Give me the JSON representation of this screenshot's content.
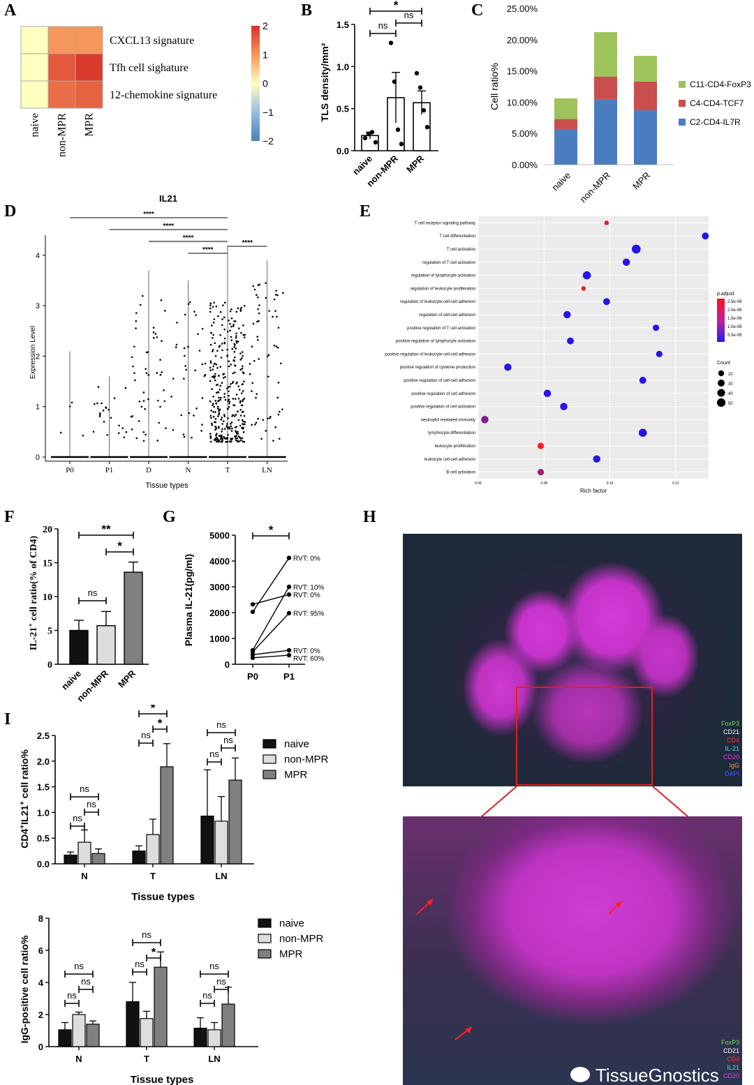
{
  "panels": [
    "A",
    "B",
    "C",
    "D",
    "E",
    "F",
    "G",
    "H",
    "I"
  ],
  "colors": {
    "green": "#9dc35a",
    "red": "#c84f4d",
    "blue": "#4a7dc0",
    "black": "#111111",
    "light": "#dddddd",
    "gray": "#808080"
  },
  "chart_data": [
    {
      "id": "A",
      "type": "heatmap",
      "rows": [
        "CXCL13 signature",
        "Tfh cell sighature",
        "12-chemokine signature"
      ],
      "columns": [
        "naive",
        "non-MPR",
        "MPR"
      ],
      "values": [
        [
          0,
          1.0,
          1.0
        ],
        [
          0,
          1.6,
          1.9
        ],
        [
          0,
          1.4,
          1.5
        ]
      ],
      "colorbar_ticks": [
        "2",
        "1",
        "0",
        "−1",
        "−2"
      ],
      "clim": [
        -2,
        2
      ]
    },
    {
      "id": "B",
      "type": "bar",
      "ylabel": "TLS density/mm²",
      "categories": [
        "naive",
        "non-MPR",
        "MPR"
      ],
      "values": [
        0.18,
        0.63,
        0.57
      ],
      "errors": [
        0.04,
        0.3,
        0.14
      ],
      "points": [
        [
          0.15,
          0.2,
          0.22,
          0.1
        ],
        [
          1.28,
          0.82,
          0.25,
          0.08
        ],
        [
          0.92,
          0.75,
          0.48,
          0.28
        ]
      ],
      "yticks": [
        "0.0",
        "0.5",
        "1.0",
        "1.5"
      ],
      "ylim": [
        0,
        1.5
      ],
      "significance": [
        {
          "a": 1,
          "b": 2,
          "label": "ns"
        },
        {
          "a": 2,
          "b": 3,
          "label": "ns"
        },
        {
          "a": 1,
          "b": 3,
          "label": "*"
        }
      ]
    },
    {
      "id": "C",
      "type": "bar",
      "stacked": true,
      "ylabel": "Cell ratio%",
      "categories": [
        "naive",
        "non-MPR",
        "MPR"
      ],
      "series": [
        {
          "name": "C2-CD4-IL7R",
          "color": "#4a7dc0",
          "values": [
            5.7,
            10.4,
            8.7
          ]
        },
        {
          "name": "C4-CD4-TCF7",
          "color": "#c84f4d",
          "values": [
            1.6,
            3.7,
            4.6
          ]
        },
        {
          "name": "C11-CD4-FoxP3",
          "color": "#9dc35a",
          "values": [
            3.3,
            7.1,
            4.1
          ]
        }
      ],
      "yticks": [
        "0.00%",
        "5.00%",
        "10.00%",
        "15.00%",
        "20.00%",
        "25.00%"
      ],
      "ylim": [
        0,
        25
      ]
    },
    {
      "id": "D",
      "type": "scatter",
      "title": "IL21",
      "xlabel": "Tissue types",
      "ylabel": "Expression Level",
      "categories": [
        "P0",
        "P1",
        "D",
        "N",
        "T",
        "LN"
      ],
      "max_values": [
        2.1,
        1.6,
        3.7,
        3.5,
        4.2,
        3.9
      ],
      "cell_counts": [
        4,
        22,
        48,
        35,
        330,
        60
      ],
      "yticks": [
        "0",
        "1",
        "2",
        "3",
        "4"
      ],
      "ylim": [
        0,
        4.4
      ],
      "significance": [
        {
          "a": 1,
          "b": 5,
          "label": "****"
        },
        {
          "a": 2,
          "b": 5,
          "label": "****"
        },
        {
          "a": 3,
          "b": 5,
          "label": "****"
        },
        {
          "a": 4,
          "b": 5,
          "label": "****"
        },
        {
          "a": 5,
          "b": 6,
          "label": "****"
        }
      ]
    },
    {
      "id": "E",
      "type": "scatter",
      "xlabel": "Rich factor",
      "xticks": [
        "0.06",
        "0.08",
        "0.10",
        "0.12"
      ],
      "xlim": [
        0.06,
        0.13
      ],
      "terms": [
        {
          "name": "T cell receptor signaling pathway",
          "x": 0.099,
          "count": 10,
          "padj": 2.2e-08
        },
        {
          "name": "T cell differentiation",
          "x": 0.129,
          "count": 30,
          "padj": 1e-09
        },
        {
          "name": "T cell activation",
          "x": 0.108,
          "count": 55,
          "padj": 2e-09
        },
        {
          "name": "regulation of T cell activation",
          "x": 0.105,
          "count": 35,
          "padj": 2e-09
        },
        {
          "name": "regulation of lymphocyte activation",
          "x": 0.093,
          "count": 45,
          "padj": 2e-09
        },
        {
          "name": "regulation of leukocyte proliferation",
          "x": 0.092,
          "count": 10,
          "padj": 2.5e-08
        },
        {
          "name": "regulation of leukocyte cell-cell adhesion",
          "x": 0.099,
          "count": 30,
          "padj": 2e-09
        },
        {
          "name": "regulation of cell-cell adhesion",
          "x": 0.087,
          "count": 35,
          "padj": 2e-09
        },
        {
          "name": "positive regulation of T cell activation",
          "x": 0.114,
          "count": 25,
          "padj": 2e-09
        },
        {
          "name": "positive regulation of lymphocyte activation",
          "x": 0.088,
          "count": 30,
          "padj": 2e-09
        },
        {
          "name": "positive regulation of leukocyte cell-cell adhesion",
          "x": 0.115,
          "count": 25,
          "padj": 2e-09
        },
        {
          "name": "positive regulation of cytokine production",
          "x": 0.069,
          "count": 35,
          "padj": 2e-09
        },
        {
          "name": "positive regulation of cell-cell adhesion",
          "x": 0.11,
          "count": 30,
          "padj": 2e-09
        },
        {
          "name": "positive regulation of cell adhesion",
          "x": 0.081,
          "count": 35,
          "padj": 2e-09
        },
        {
          "name": "positive regulation of cell activation",
          "x": 0.086,
          "count": 35,
          "padj": 2e-09
        },
        {
          "name": "neutrophil mediated immunity",
          "x": 0.062,
          "count": 35,
          "padj": 1.2e-08
        },
        {
          "name": "lymphocyte differentiation",
          "x": 0.11,
          "count": 45,
          "padj": 2e-09
        },
        {
          "name": "leukocyte proliferation",
          "x": 0.079,
          "count": 25,
          "padj": 2.5e-08
        },
        {
          "name": "leukocyte cell-cell adhesion",
          "x": 0.096,
          "count": 35,
          "padj": 2e-09
        },
        {
          "name": "B cell activation",
          "x": 0.079,
          "count": 25,
          "padj": 1.6e-08
        }
      ],
      "legend": {
        "color_title": "p.adjust",
        "color_ticks": [
          "2.5e-08",
          "2.0e-08",
          "1.5e-08",
          "1.0e-08",
          "5.0e-09"
        ],
        "size_title": "Count",
        "size_ticks": [
          "20",
          "30",
          "40",
          "50"
        ]
      }
    },
    {
      "id": "F",
      "type": "bar",
      "ylabel_main": "IL-21",
      "ylabel_sup": "+",
      "ylabel_rest": " cell ratio(% of CD4)",
      "categories": [
        "naive",
        "non-MPR",
        "MPR"
      ],
      "values": [
        5.0,
        5.7,
        13.6
      ],
      "errors": [
        1.5,
        2.1,
        1.5
      ],
      "colors": [
        "#111111",
        "#dddddd",
        "#808080"
      ],
      "yticks": [
        "0",
        "5",
        "10",
        "15",
        "20"
      ],
      "ylim": [
        0,
        20
      ],
      "significance": [
        {
          "a": 1,
          "b": 2,
          "label": "ns"
        },
        {
          "a": 2,
          "b": 3,
          "label": "*"
        },
        {
          "a": 1,
          "b": 3,
          "label": "**"
        }
      ]
    },
    {
      "id": "G",
      "type": "line",
      "ylabel": "Plasma IL-21(pg/ml)",
      "categories": [
        "P0",
        "P1"
      ],
      "pairs": [
        [
          2320,
          2700
        ],
        [
          2030,
          4120
        ],
        [
          540,
          3000
        ],
        [
          480,
          1980
        ],
        [
          370,
          540
        ],
        [
          250,
          350
        ]
      ],
      "labels": [
        "RVT: 0%",
        "RVT: 10%",
        "RVT: 0%",
        "RVT: 95%",
        "RVT: 0%",
        "RVT: 60%"
      ],
      "label_values": [
        4120,
        3000,
        2700,
        1980,
        540,
        350
      ],
      "yticks": [
        "0",
        "1000",
        "2000",
        "3000",
        "4000",
        "5000"
      ],
      "ylim": [
        0,
        5000
      ],
      "significance": [
        {
          "a": 1,
          "b": 2,
          "label": "*"
        }
      ]
    },
    {
      "id": "I1",
      "type": "bar",
      "ylabel_sup1": "+",
      "ylabel_sup2": "+",
      "ylabel_a": "CD4",
      "ylabel_b": "IL21",
      "ylabel_c": " cell ratio%",
      "xlabel": "Tissue types",
      "categories": [
        "N",
        "T",
        "LN"
      ],
      "series": [
        {
          "name": "naive",
          "values": [
            0.17,
            0.25,
            0.93
          ],
          "errors": [
            0.06,
            0.1,
            0.9
          ]
        },
        {
          "name": "non-MPR",
          "values": [
            0.42,
            0.57,
            0.83
          ],
          "errors": [
            0.24,
            0.3,
            0.48
          ]
        },
        {
          "name": "MPR",
          "values": [
            0.2,
            1.89,
            1.63
          ],
          "errors": [
            0.09,
            0.45,
            0.43
          ]
        }
      ],
      "yticks": [
        "0.0",
        "0.5",
        "1.0",
        "1.5",
        "2.0",
        "2.5"
      ],
      "ylim": [
        0,
        2.5
      ],
      "significance": [
        [
          {
            "a": 0,
            "b": 1,
            "label": "ns"
          },
          {
            "a": 1,
            "b": 2,
            "label": "ns"
          },
          {
            "a": 0,
            "b": 2,
            "label": "ns"
          }
        ],
        [
          {
            "a": 0,
            "b": 1,
            "label": "ns"
          },
          {
            "a": 1,
            "b": 2,
            "label": "*"
          },
          {
            "a": 0,
            "b": 2,
            "label": "*"
          }
        ],
        [
          {
            "a": 0,
            "b": 1,
            "label": "ns"
          },
          {
            "a": 1,
            "b": 2,
            "label": "ns"
          },
          {
            "a": 0,
            "b": 2,
            "label": "ns"
          }
        ]
      ]
    },
    {
      "id": "I2",
      "type": "bar",
      "ylabel": "IgG-positive cell ratio%",
      "xlabel": "Tissue types",
      "categories": [
        "N",
        "T",
        "LN"
      ],
      "series": [
        {
          "name": "naive",
          "values": [
            1.05,
            2.8,
            1.15
          ],
          "errors": [
            0.45,
            1.2,
            0.65
          ]
        },
        {
          "name": "non-MPR",
          "values": [
            2.0,
            1.75,
            1.05
          ],
          "errors": [
            0.15,
            0.45,
            0.45
          ]
        },
        {
          "name": "MPR",
          "values": [
            1.4,
            4.95,
            2.65
          ],
          "errors": [
            0.2,
            0.95,
            1.05
          ]
        }
      ],
      "yticks": [
        "0",
        "2",
        "4",
        "6",
        "8"
      ],
      "ylim": [
        0,
        8
      ],
      "significance": [
        [
          {
            "a": 0,
            "b": 1,
            "label": "ns"
          },
          {
            "a": 1,
            "b": 2,
            "label": "ns"
          },
          {
            "a": 0,
            "b": 2,
            "label": "ns"
          }
        ],
        [
          {
            "a": 0,
            "b": 1,
            "label": "ns"
          },
          {
            "a": 1,
            "b": 2,
            "label": "*"
          },
          {
            "a": 0,
            "b": 2,
            "label": "ns"
          }
        ],
        [
          {
            "a": 0,
            "b": 1,
            "label": "ns"
          },
          {
            "a": 1,
            "b": 2,
            "label": "ns"
          },
          {
            "a": 0,
            "b": 2,
            "label": "ns"
          }
        ]
      ]
    }
  ],
  "H": {
    "channels_top": [
      "FoxP3",
      "CD21",
      "CD4",
      "IL-21",
      "CD20",
      "IgG",
      "DAPI"
    ],
    "channels_bottom": [
      "FoxP3",
      "CD21",
      "CD4",
      "IL21",
      "CD20"
    ],
    "channel_colors": [
      "#6adf5a",
      "#ffffff",
      "#ff3030",
      "#5fd8e0",
      "#e040e0",
      "#e0a040",
      "#4060ff"
    ],
    "watermark": "TissueGnostics"
  }
}
